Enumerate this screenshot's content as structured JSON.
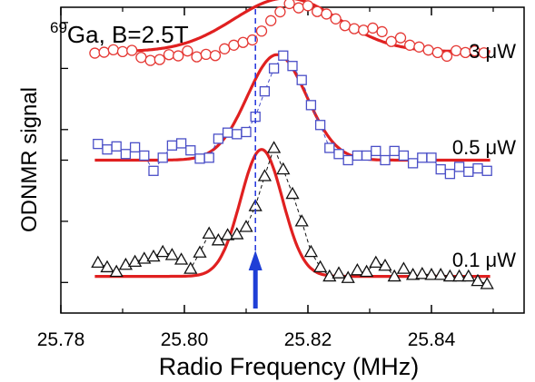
{
  "chart_data": {
    "type": "scatter",
    "title": "Ga, B=2.5T",
    "title_sup": "69",
    "xlabel": "Radio Frequency (MHz)",
    "ylabel": "ODNMR signal",
    "xlim": [
      25.78,
      25.855
    ],
    "x_ticks": [
      "25.78",
      "25.80",
      "25.82",
      "25.84"
    ],
    "x_tick_values": [
      25.78,
      25.8,
      25.82,
      25.84
    ],
    "y_ticks_labeled": false,
    "grid": false,
    "marker_line_freq": 25.8115,
    "arrow_freq": 25.8115,
    "arrow_color": "#1f3fd6",
    "series": [
      {
        "name": "3 μW",
        "marker": "circle",
        "marker_color": "#e53935",
        "fit_color": "#e02020",
        "baseline": 0.855,
        "fit": {
          "center": 25.8165,
          "amplitude": 0.175,
          "width": 0.0085
        },
        "x": [
          25.7855,
          25.787,
          25.7885,
          25.79,
          25.7915,
          25.793,
          25.7945,
          25.796,
          25.7975,
          25.799,
          25.8005,
          25.802,
          25.8035,
          25.805,
          25.8065,
          25.808,
          25.8095,
          25.811,
          25.8125,
          25.814,
          25.8155,
          25.817,
          25.8185,
          25.82,
          25.8215,
          25.823,
          25.8245,
          25.826,
          25.8275,
          25.829,
          25.8305,
          25.832,
          25.8335,
          25.835,
          25.8365,
          25.838,
          25.8395,
          25.841,
          25.8425,
          25.844,
          25.8455,
          25.847,
          25.8485
        ],
        "y": [
          0.85,
          0.853,
          0.861,
          0.855,
          0.859,
          0.836,
          0.826,
          0.829,
          0.845,
          0.841,
          0.857,
          0.838,
          0.846,
          0.842,
          0.864,
          0.876,
          0.885,
          0.893,
          0.922,
          0.956,
          0.985,
          1.012,
          0.998,
          1.005,
          0.986,
          0.978,
          0.962,
          0.94,
          0.93,
          0.925,
          0.932,
          0.92,
          0.888,
          0.9,
          0.876,
          0.87,
          0.86,
          0.852,
          0.84,
          0.858,
          0.852,
          0.857,
          0.851
        ]
      },
      {
        "name": "0.5 μW",
        "marker": "square",
        "marker_color": "#4a4fc7",
        "fit_color": "#e02020",
        "baseline": 0.5,
        "fit": {
          "center": 25.815,
          "amplitude": 0.345,
          "width": 0.0048
        },
        "x": [
          25.786,
          25.7875,
          25.789,
          25.7905,
          25.792,
          25.7935,
          25.795,
          25.7965,
          25.798,
          25.7995,
          25.801,
          25.8025,
          25.804,
          25.8055,
          25.807,
          25.8085,
          25.81,
          25.8115,
          25.813,
          25.8145,
          25.816,
          25.8175,
          25.819,
          25.8205,
          25.822,
          25.8235,
          25.825,
          25.8265,
          25.828,
          25.8295,
          25.831,
          25.8325,
          25.834,
          25.8355,
          25.837,
          25.8385,
          25.84,
          25.8415,
          25.843,
          25.8445,
          25.846,
          25.8475,
          25.849
        ],
        "y": [
          0.553,
          0.535,
          0.545,
          0.52,
          0.542,
          0.515,
          0.465,
          0.508,
          0.548,
          0.555,
          0.532,
          0.505,
          0.508,
          0.57,
          0.59,
          0.585,
          0.592,
          0.642,
          0.725,
          0.8,
          0.842,
          0.808,
          0.762,
          0.68,
          0.615,
          0.54,
          0.52,
          0.5,
          0.515,
          0.515,
          0.53,
          0.5,
          0.53,
          0.515,
          0.49,
          0.508,
          0.508,
          0.47,
          0.455,
          0.478,
          0.462,
          0.473,
          0.465
        ]
      },
      {
        "name": "0.1 μW",
        "marker": "triangle",
        "marker_color": "#111111",
        "fit_color": "#e02020",
        "baseline": 0.12,
        "fit": {
          "center": 25.8125,
          "amplitude": 0.415,
          "width": 0.0034
        },
        "x": [
          25.786,
          25.7875,
          25.789,
          25.7905,
          25.792,
          25.7935,
          25.795,
          25.7965,
          25.798,
          25.7995,
          25.801,
          25.8025,
          25.804,
          25.8055,
          25.807,
          25.8085,
          25.81,
          25.8115,
          25.813,
          25.8145,
          25.816,
          25.8175,
          25.819,
          25.8205,
          25.822,
          25.8235,
          25.825,
          25.8265,
          25.828,
          25.8295,
          25.831,
          25.8325,
          25.834,
          25.8355,
          25.837,
          25.8385,
          25.84,
          25.8415,
          25.843,
          25.8445,
          25.846,
          25.8475,
          25.849
        ],
        "y": [
          0.165,
          0.15,
          0.135,
          0.158,
          0.168,
          0.178,
          0.185,
          0.2,
          0.19,
          0.175,
          0.145,
          0.198,
          0.26,
          0.238,
          0.255,
          0.258,
          0.282,
          0.35,
          0.448,
          0.54,
          0.47,
          0.39,
          0.3,
          0.2,
          0.15,
          0.12,
          0.13,
          0.115,
          0.14,
          0.135,
          0.165,
          0.155,
          0.12,
          0.145,
          0.125,
          0.128,
          0.125,
          0.125,
          0.12,
          0.12,
          0.12,
          0.105,
          0.095
        ]
      }
    ]
  }
}
